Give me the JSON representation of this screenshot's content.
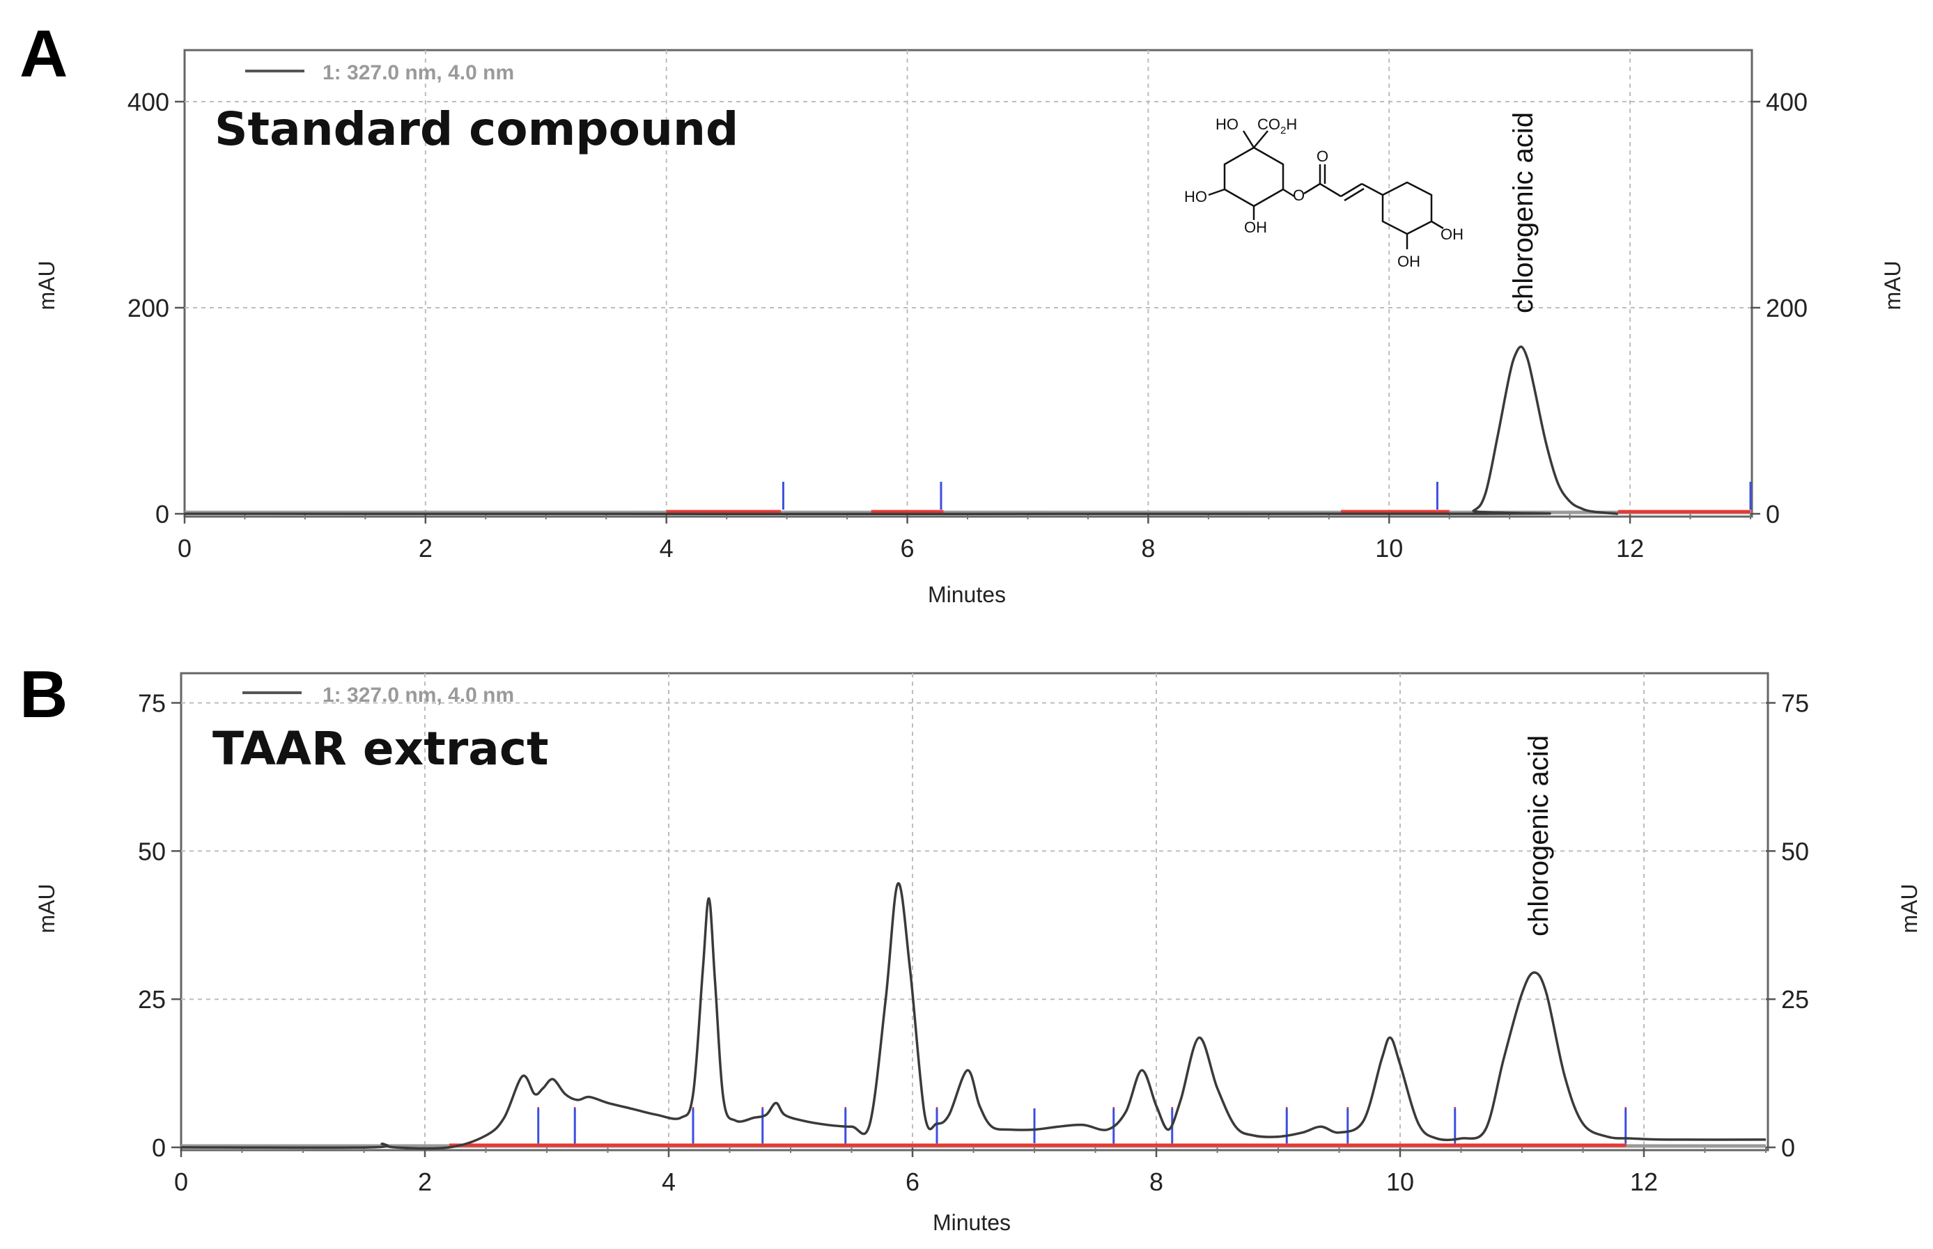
{
  "chart_data": [
    {
      "type": "line",
      "panel": "A",
      "title": "Standard compound",
      "legend": "1: 327.0 nm, 4.0 nm",
      "xlabel": "Minutes",
      "ylabel_left": "mAU",
      "ylabel_right": "mAU",
      "xlim": [
        0,
        13
      ],
      "ylim": [
        0,
        450
      ],
      "xticks": [
        0,
        2,
        4,
        6,
        8,
        10,
        12
      ],
      "yticks": [
        0,
        200,
        400
      ],
      "grid": true,
      "series": [
        {
          "x": [
            0,
            10.5,
            10.7,
            10.8,
            10.9,
            11.0,
            11.05,
            11.1,
            11.15,
            11.2,
            11.3,
            11.4,
            11.5,
            11.6,
            11.7,
            11.9
          ],
          "y": [
            0,
            0,
            3,
            20,
            75,
            135,
            155,
            162,
            150,
            125,
            70,
            30,
            12,
            5,
            2,
            0
          ]
        }
      ],
      "peak_label": {
        "text": "chlorogenic acid",
        "x": 11.1
      },
      "peak_markers": [
        4.97,
        6.28,
        10.4,
        13.0
      ],
      "baseline_segments": [
        [
          4.0,
          4.95
        ],
        [
          5.7,
          6.3
        ],
        [
          9.6,
          10.5
        ],
        [
          11.9,
          13.0
        ]
      ],
      "structure_labels": {
        "ho_top": "HO",
        "co2h": "CO",
        "co2h_sub": "2",
        "co2h_h": "H",
        "ho_left": "HO",
        "oh_bottom": "OH",
        "o_ester": "O",
        "o_carbonyl": "O",
        "oh_ring_right": "OH",
        "oh_ring_bottom": "OH"
      }
    },
    {
      "type": "line",
      "panel": "B",
      "title": "TAAR extract",
      "legend": "1: 327.0 nm, 4.0 nm",
      "xlabel": "Minutes",
      "ylabel_left": "mAU",
      "ylabel_right": "mAU",
      "xlim": [
        0,
        13
      ],
      "ylim": [
        0,
        80
      ],
      "xticks": [
        0,
        2,
        4,
        6,
        8,
        10,
        12
      ],
      "yticks": [
        0,
        25,
        50,
        75
      ],
      "grid": true,
      "series": [
        {
          "x": [
            0,
            1.55,
            1.65,
            1.75,
            2.2,
            2.5,
            2.65,
            2.8,
            2.9,
            2.97,
            3.05,
            3.15,
            3.25,
            3.35,
            3.5,
            3.7,
            3.9,
            4.1,
            4.2,
            4.28,
            4.33,
            4.38,
            4.45,
            4.55,
            4.7,
            4.8,
            4.88,
            4.95,
            5.1,
            5.3,
            5.5,
            5.65,
            5.78,
            5.88,
            5.98,
            6.1,
            6.2,
            6.3,
            6.45,
            6.55,
            6.65,
            6.8,
            7.0,
            7.2,
            7.4,
            7.6,
            7.75,
            7.88,
            8.0,
            8.1,
            8.2,
            8.35,
            8.5,
            8.65,
            8.8,
            9.0,
            9.2,
            9.35,
            9.5,
            9.7,
            9.85,
            9.92,
            10.0,
            10.15,
            10.3,
            10.5,
            10.7,
            10.85,
            11.0,
            11.1,
            11.2,
            11.35,
            11.5,
            11.7,
            11.9,
            12.2,
            13.0
          ],
          "y": [
            0,
            0,
            0.6,
            0,
            0,
            2,
            5,
            12,
            9,
            10,
            11.5,
            9,
            8,
            8.5,
            7.5,
            6.5,
            5.5,
            5,
            9,
            30,
            42,
            28,
            8,
            4.5,
            5,
            5.5,
            7.5,
            5.5,
            4.5,
            3.8,
            3.5,
            4,
            25,
            44.5,
            30,
            5.5,
            4,
            5.5,
            13,
            7,
            3.5,
            3,
            3,
            3.5,
            3.8,
            3,
            6,
            13,
            7,
            3,
            8,
            18.5,
            10,
            3.5,
            2,
            1.8,
            2.5,
            3.5,
            2.5,
            4.5,
            15,
            18.5,
            14,
            4,
            1.5,
            1.5,
            3,
            15,
            26,
            29.5,
            26,
            12,
            4,
            1.8,
            1.5,
            1.3,
            1.3
          ]
        }
      ],
      "peak_label": {
        "text": "chlorogenic acid",
        "x": 11.1
      },
      "peak_markers": [
        2.93,
        3.23,
        4.2,
        4.77,
        5.45,
        6.2,
        7.0,
        7.65,
        8.13,
        9.07,
        9.57,
        10.45,
        11.85
      ],
      "red_markers": [
        2.93,
        3.23,
        4.2,
        4.77,
        5.45,
        6.2,
        7.65,
        8.13,
        9.07,
        9.57,
        10.45,
        11.85
      ],
      "baseline_segments": [
        [
          2.2,
          7.0
        ],
        [
          7.0,
          9.05
        ],
        [
          9.05,
          11.0
        ],
        [
          11.0,
          11.85
        ]
      ]
    }
  ]
}
